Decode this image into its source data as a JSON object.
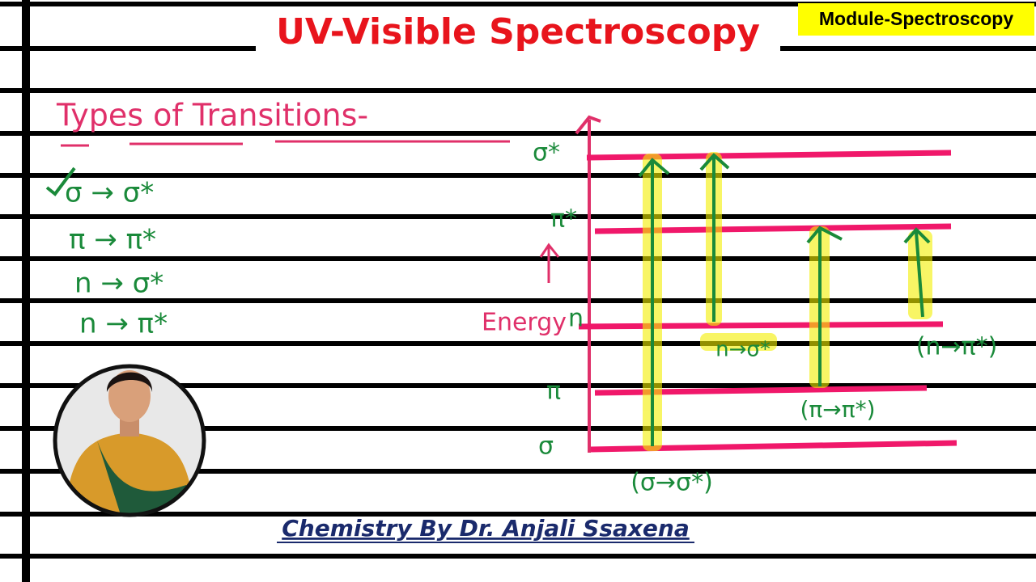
{
  "header": {
    "title": "UV-Visible Spectroscopy",
    "badge": "Module-Spectroscopy"
  },
  "heading": "Types of Transitions-",
  "transitions": [
    "σ → σ*",
    "π → π*",
    "n → σ*",
    "n → π*"
  ],
  "diagram": {
    "levels": [
      "σ*",
      "π*",
      "n",
      "π",
      "σ"
    ],
    "axis_label": "Energy",
    "arrow_labels": [
      "(σ→σ*)",
      "n→σ*",
      "(π→π*)",
      "(n→π*)"
    ]
  },
  "footer": "Chemistry By Dr. Anjali Ssaxena"
}
